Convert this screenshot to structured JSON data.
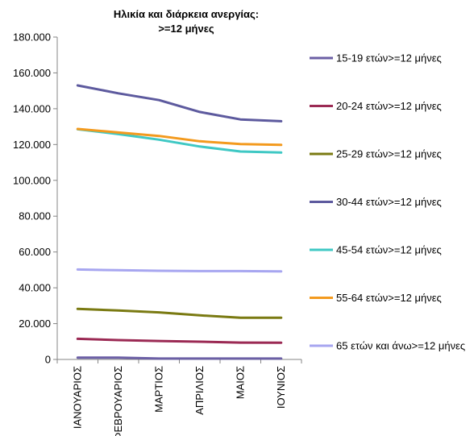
{
  "chart_data": {
    "type": "line",
    "title": "Ηλικία και διάρκεια ανεργίας:",
    "subtitle": ">=12 μήνες",
    "categories": [
      "ΙΑΝΟΥΑΡΙΟΣ",
      "ΦΕΒΡΟΥΑΡΙΟΣ",
      "ΜΑΡΤΙΟΣ",
      "ΑΠΡΙΛΙΟΣ",
      "ΜΑΙΟΣ",
      "ΙΟΥΝΙΟΣ"
    ],
    "ylim": [
      0,
      180000
    ],
    "yticks": [
      "0",
      "20.000",
      "40.000",
      "60.000",
      "80.000",
      "100.000",
      "120.000",
      "140.000",
      "160.000",
      "180.000"
    ],
    "grid": false,
    "legend_position": "right",
    "series": [
      {
        "name": "15-19 ετών>=12 μήνες",
        "color": "#6b5fa5",
        "values": [
          1000,
          1000,
          500,
          500,
          500,
          500
        ]
      },
      {
        "name": "20-24  ετών>=12 μήνες",
        "color": "#9b2a54",
        "values": [
          11500,
          10800,
          10300,
          9900,
          9400,
          9300
        ]
      },
      {
        "name": "25-29 ετών>=12 μήνες",
        "color": "#7a7a12",
        "values": [
          28200,
          27300,
          26300,
          24600,
          23300,
          23300
        ]
      },
      {
        "name": "30-44  ετών>=12 μήνες",
        "color": "#5d5a9e",
        "values": [
          153000,
          148600,
          144800,
          138200,
          134000,
          133000
        ]
      },
      {
        "name": "45-54 ετών>=12 μήνες",
        "color": "#3fc8c4",
        "values": [
          128500,
          125800,
          122700,
          118900,
          116100,
          115500
        ]
      },
      {
        "name": "55-64 ετών>=12 μήνες",
        "color": "#f39a1e",
        "values": [
          128700,
          126700,
          124800,
          121800,
          120300,
          119800
        ]
      },
      {
        "name": "65 ετών και άνω>=12 μήνες",
        "color": "#a7a6f0",
        "values": [
          50200,
          49800,
          49500,
          49300,
          49300,
          49200
        ]
      }
    ]
  }
}
